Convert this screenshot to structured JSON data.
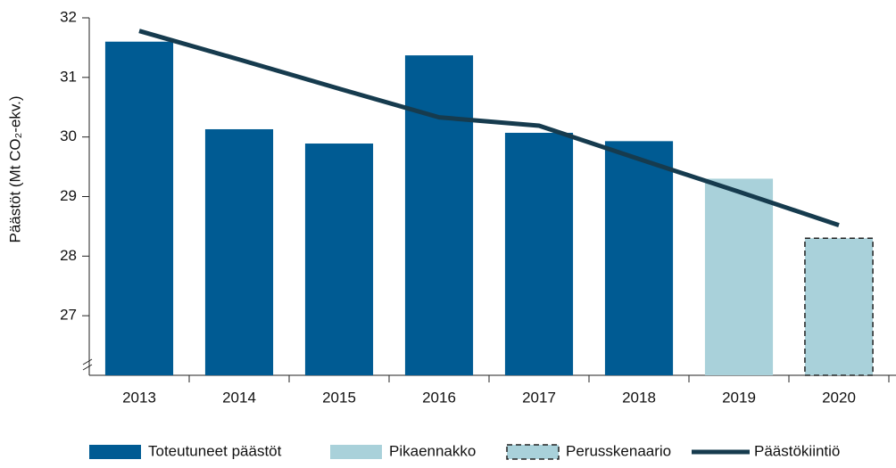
{
  "chart_data": {
    "type": "bar",
    "y_label": "Päästöt (Mt CO₂-ekv.)",
    "categories": [
      "2013",
      "2014",
      "2015",
      "2016",
      "2017",
      "2018",
      "2019",
      "2020"
    ],
    "series": [
      {
        "name": "Toteutuneet päästöt",
        "color": "#005b93",
        "values": [
          31.6,
          30.13,
          29.89,
          31.37,
          30.07,
          29.93,
          null,
          null
        ]
      },
      {
        "name": "Pikaennakko",
        "color": "#a9d1da",
        "values": [
          null,
          null,
          null,
          null,
          null,
          null,
          29.3,
          null
        ]
      },
      {
        "name": "Perusskenaario",
        "color": "#a9d1da",
        "dashed": true,
        "values": [
          null,
          null,
          null,
          null,
          null,
          null,
          null,
          28.3
        ]
      },
      {
        "name": "Päästökiintiö",
        "color": "#163b4e",
        "type": "line",
        "values": [
          31.78,
          31.3,
          30.81,
          30.33,
          30.19,
          29.63,
          29.08,
          28.52
        ]
      }
    ],
    "ylim": [
      26,
      32
    ],
    "yticks": [
      27,
      28,
      29,
      30,
      31,
      32
    ],
    "axis_break": true,
    "legend": "bottom"
  }
}
